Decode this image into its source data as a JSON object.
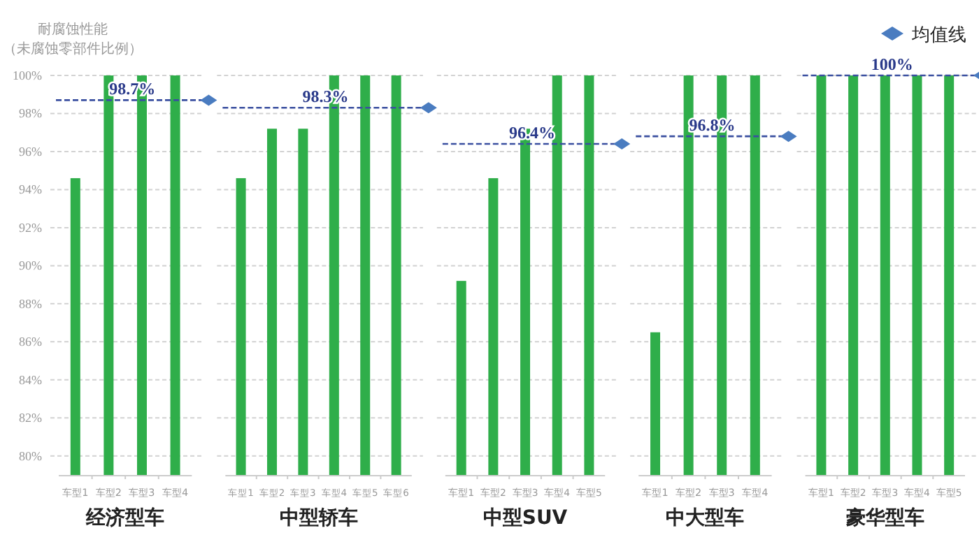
{
  "chart_data": [
    {
      "type": "bar",
      "title": "经济型车",
      "ylabel": "耐腐蚀性能（未腐蚀零部件比例）",
      "categories": [
        "车型1",
        "车型2",
        "车型3",
        "车型4"
      ],
      "values": [
        94.6,
        100,
        100,
        100
      ],
      "color": "#2fae4a",
      "ylim": [
        79,
        100
      ],
      "yticks": [
        {
          "value": 80,
          "label": "80%"
        },
        {
          "value": 82,
          "label": "82%"
        },
        {
          "value": 84,
          "label": "84%"
        },
        {
          "value": 86,
          "label": "86%"
        },
        {
          "value": 88,
          "label": "88%"
        },
        {
          "value": 90,
          "label": "90%"
        },
        {
          "value": 92,
          "label": "92%"
        },
        {
          "value": 94,
          "label": "94%"
        },
        {
          "value": 96,
          "label": "96%"
        },
        {
          "value": 98,
          "label": "98%"
        },
        {
          "value": 100,
          "label": "100%"
        }
      ],
      "grid": "y",
      "ref_lines": [
        {
          "axis": "y",
          "value": 98.7,
          "label": "98.7%",
          "color": "#3a4fa0",
          "line_style": "dashed"
        }
      ]
    },
    {
      "type": "bar",
      "title": "中型轿车",
      "categories": [
        "车型1",
        "车型2",
        "车型3",
        "车型4",
        "车型5",
        "车型6"
      ],
      "values": [
        94.6,
        97.2,
        97.2,
        100,
        100,
        100
      ],
      "color": "#2fae4a",
      "ylim": [
        79,
        100
      ],
      "yticks": [
        80,
        82,
        84,
        86,
        88,
        90,
        92,
        94,
        96,
        98,
        100
      ],
      "grid": "y",
      "tick_labels": "x",
      "ref_lines": [
        {
          "axis": "y",
          "value": 98.3,
          "label": "98.3%",
          "color": "#3a4fa0",
          "line_style": "dashed"
        }
      ]
    },
    {
      "type": "bar",
      "title": "中型SUV",
      "categories": [
        "车型1",
        "车型2",
        "车型3",
        "车型4",
        "车型5"
      ],
      "values": [
        89.2,
        94.6,
        97.2,
        100,
        100
      ],
      "color": "#2fae4a",
      "ylim": [
        79,
        100
      ],
      "yticks": [
        80,
        82,
        84,
        86,
        88,
        90,
        92,
        94,
        96,
        98,
        100
      ],
      "grid": "y",
      "tick_labels": "x",
      "ref_lines": [
        {
          "axis": "y",
          "value": 96.4,
          "label": "96.4%",
          "color": "#3a4fa0",
          "line_style": "dashed"
        }
      ]
    },
    {
      "type": "bar",
      "title": "中大型车",
      "categories": [
        "车型1",
        "车型2",
        "车型3",
        "车型4"
      ],
      "values": [
        86.5,
        100,
        100,
        100
      ],
      "color": "#2fae4a",
      "ylim": [
        79,
        100
      ],
      "yticks": [
        80,
        82,
        84,
        86,
        88,
        90,
        92,
        94,
        96,
        98,
        100
      ],
      "grid": "y",
      "tick_labels": "x",
      "ref_lines": [
        {
          "axis": "y",
          "value": 96.8,
          "label": "96.8%",
          "color": "#3a4fa0",
          "line_style": "dashed"
        }
      ]
    },
    {
      "type": "bar",
      "title": "豪华型车",
      "categories": [
        "车型1",
        "车型2",
        "车型3",
        "车型4",
        "车型5"
      ],
      "values": [
        100,
        100,
        100,
        100,
        100
      ],
      "color": "#2fae4a",
      "ylim": [
        79,
        100
      ],
      "yticks": [
        80,
        82,
        84,
        86,
        88,
        90,
        92,
        94,
        96,
        98,
        100
      ],
      "grid": "y",
      "tick_labels": "x",
      "legend": "top right",
      "legend_title": "均值线",
      "ref_lines": [
        {
          "axis": "y",
          "value": 100,
          "label": "100%",
          "color": "#3a4fa0",
          "line_style": "dashed"
        }
      ]
    }
  ]
}
